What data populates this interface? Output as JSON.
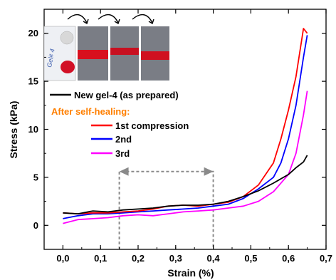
{
  "chart_data": {
    "type": "line",
    "xlabel": "Strain (%)",
    "ylabel": "Stress (kPa)",
    "xlim": [
      -0.05,
      0.7
    ],
    "ylim": [
      -2.5,
      22.5
    ],
    "x_ticks": [
      0.0,
      0.1,
      0.2,
      0.3,
      0.4,
      0.5,
      0.6,
      0.7
    ],
    "x_tick_labels": [
      "0,0",
      "0,1",
      "0,2",
      "0,3",
      "0,4",
      "0,5",
      "0,6",
      "0,7"
    ],
    "y_ticks": [
      0,
      5,
      10,
      15,
      20
    ],
    "y_tick_labels": [
      "0",
      "5",
      "10",
      "15",
      "20"
    ],
    "legend_heading": "After self-healing:",
    "legend_heading_color": "#ff7f00",
    "series": [
      {
        "name": "New gel-4 (as prepared)",
        "color": "#000000",
        "points": [
          [
            0.0,
            1.3
          ],
          [
            0.04,
            1.2
          ],
          [
            0.08,
            1.5
          ],
          [
            0.12,
            1.4
          ],
          [
            0.16,
            1.6
          ],
          [
            0.2,
            1.7
          ],
          [
            0.24,
            1.8
          ],
          [
            0.28,
            2.0
          ],
          [
            0.32,
            2.1
          ],
          [
            0.36,
            2.1
          ],
          [
            0.4,
            2.2
          ],
          [
            0.44,
            2.5
          ],
          [
            0.48,
            3.0
          ],
          [
            0.52,
            3.6
          ],
          [
            0.56,
            4.4
          ],
          [
            0.6,
            5.3
          ],
          [
            0.62,
            6.0
          ],
          [
            0.64,
            6.6
          ],
          [
            0.65,
            7.3
          ]
        ]
      },
      {
        "name": "1st compression",
        "color": "#ff0000",
        "points": [
          [
            0.0,
            1.3
          ],
          [
            0.04,
            1.2
          ],
          [
            0.08,
            1.3
          ],
          [
            0.12,
            1.3
          ],
          [
            0.16,
            1.4
          ],
          [
            0.2,
            1.5
          ],
          [
            0.24,
            1.7
          ],
          [
            0.28,
            2.0
          ],
          [
            0.32,
            2.1
          ],
          [
            0.36,
            2.0
          ],
          [
            0.4,
            2.2
          ],
          [
            0.44,
            2.4
          ],
          [
            0.48,
            3.0
          ],
          [
            0.52,
            4.2
          ],
          [
            0.56,
            6.5
          ],
          [
            0.58,
            9.0
          ],
          [
            0.6,
            12.0
          ],
          [
            0.62,
            15.5
          ],
          [
            0.64,
            20.5
          ],
          [
            0.65,
            20.0
          ]
        ]
      },
      {
        "name": "2nd",
        "color": "#0000ff",
        "points": [
          [
            0.0,
            0.7
          ],
          [
            0.04,
            1.0
          ],
          [
            0.08,
            1.2
          ],
          [
            0.12,
            1.2
          ],
          [
            0.16,
            1.3
          ],
          [
            0.2,
            1.4
          ],
          [
            0.24,
            1.5
          ],
          [
            0.28,
            1.6
          ],
          [
            0.32,
            1.7
          ],
          [
            0.36,
            1.8
          ],
          [
            0.4,
            2.0
          ],
          [
            0.44,
            2.2
          ],
          [
            0.48,
            2.8
          ],
          [
            0.52,
            3.8
          ],
          [
            0.56,
            5.0
          ],
          [
            0.58,
            6.5
          ],
          [
            0.6,
            9.0
          ],
          [
            0.62,
            12.5
          ],
          [
            0.64,
            17.5
          ],
          [
            0.65,
            19.8
          ]
        ]
      },
      {
        "name": "3rd",
        "color": "#ff00ff",
        "points": [
          [
            0.0,
            0.2
          ],
          [
            0.04,
            0.6
          ],
          [
            0.08,
            0.7
          ],
          [
            0.12,
            0.8
          ],
          [
            0.16,
            1.0
          ],
          [
            0.2,
            1.1
          ],
          [
            0.24,
            1.0
          ],
          [
            0.28,
            1.2
          ],
          [
            0.32,
            1.4
          ],
          [
            0.36,
            1.5
          ],
          [
            0.4,
            1.6
          ],
          [
            0.44,
            1.8
          ],
          [
            0.48,
            2.0
          ],
          [
            0.52,
            2.5
          ],
          [
            0.56,
            3.5
          ],
          [
            0.6,
            5.3
          ],
          [
            0.62,
            7.5
          ],
          [
            0.64,
            11.5
          ],
          [
            0.65,
            14.0
          ]
        ]
      }
    ],
    "range_marker": {
      "x_from": 0.15,
      "x_to": 0.4,
      "y_arrow": 5.6
    }
  },
  "inset_photo": {
    "label": "Gel# 4"
  }
}
